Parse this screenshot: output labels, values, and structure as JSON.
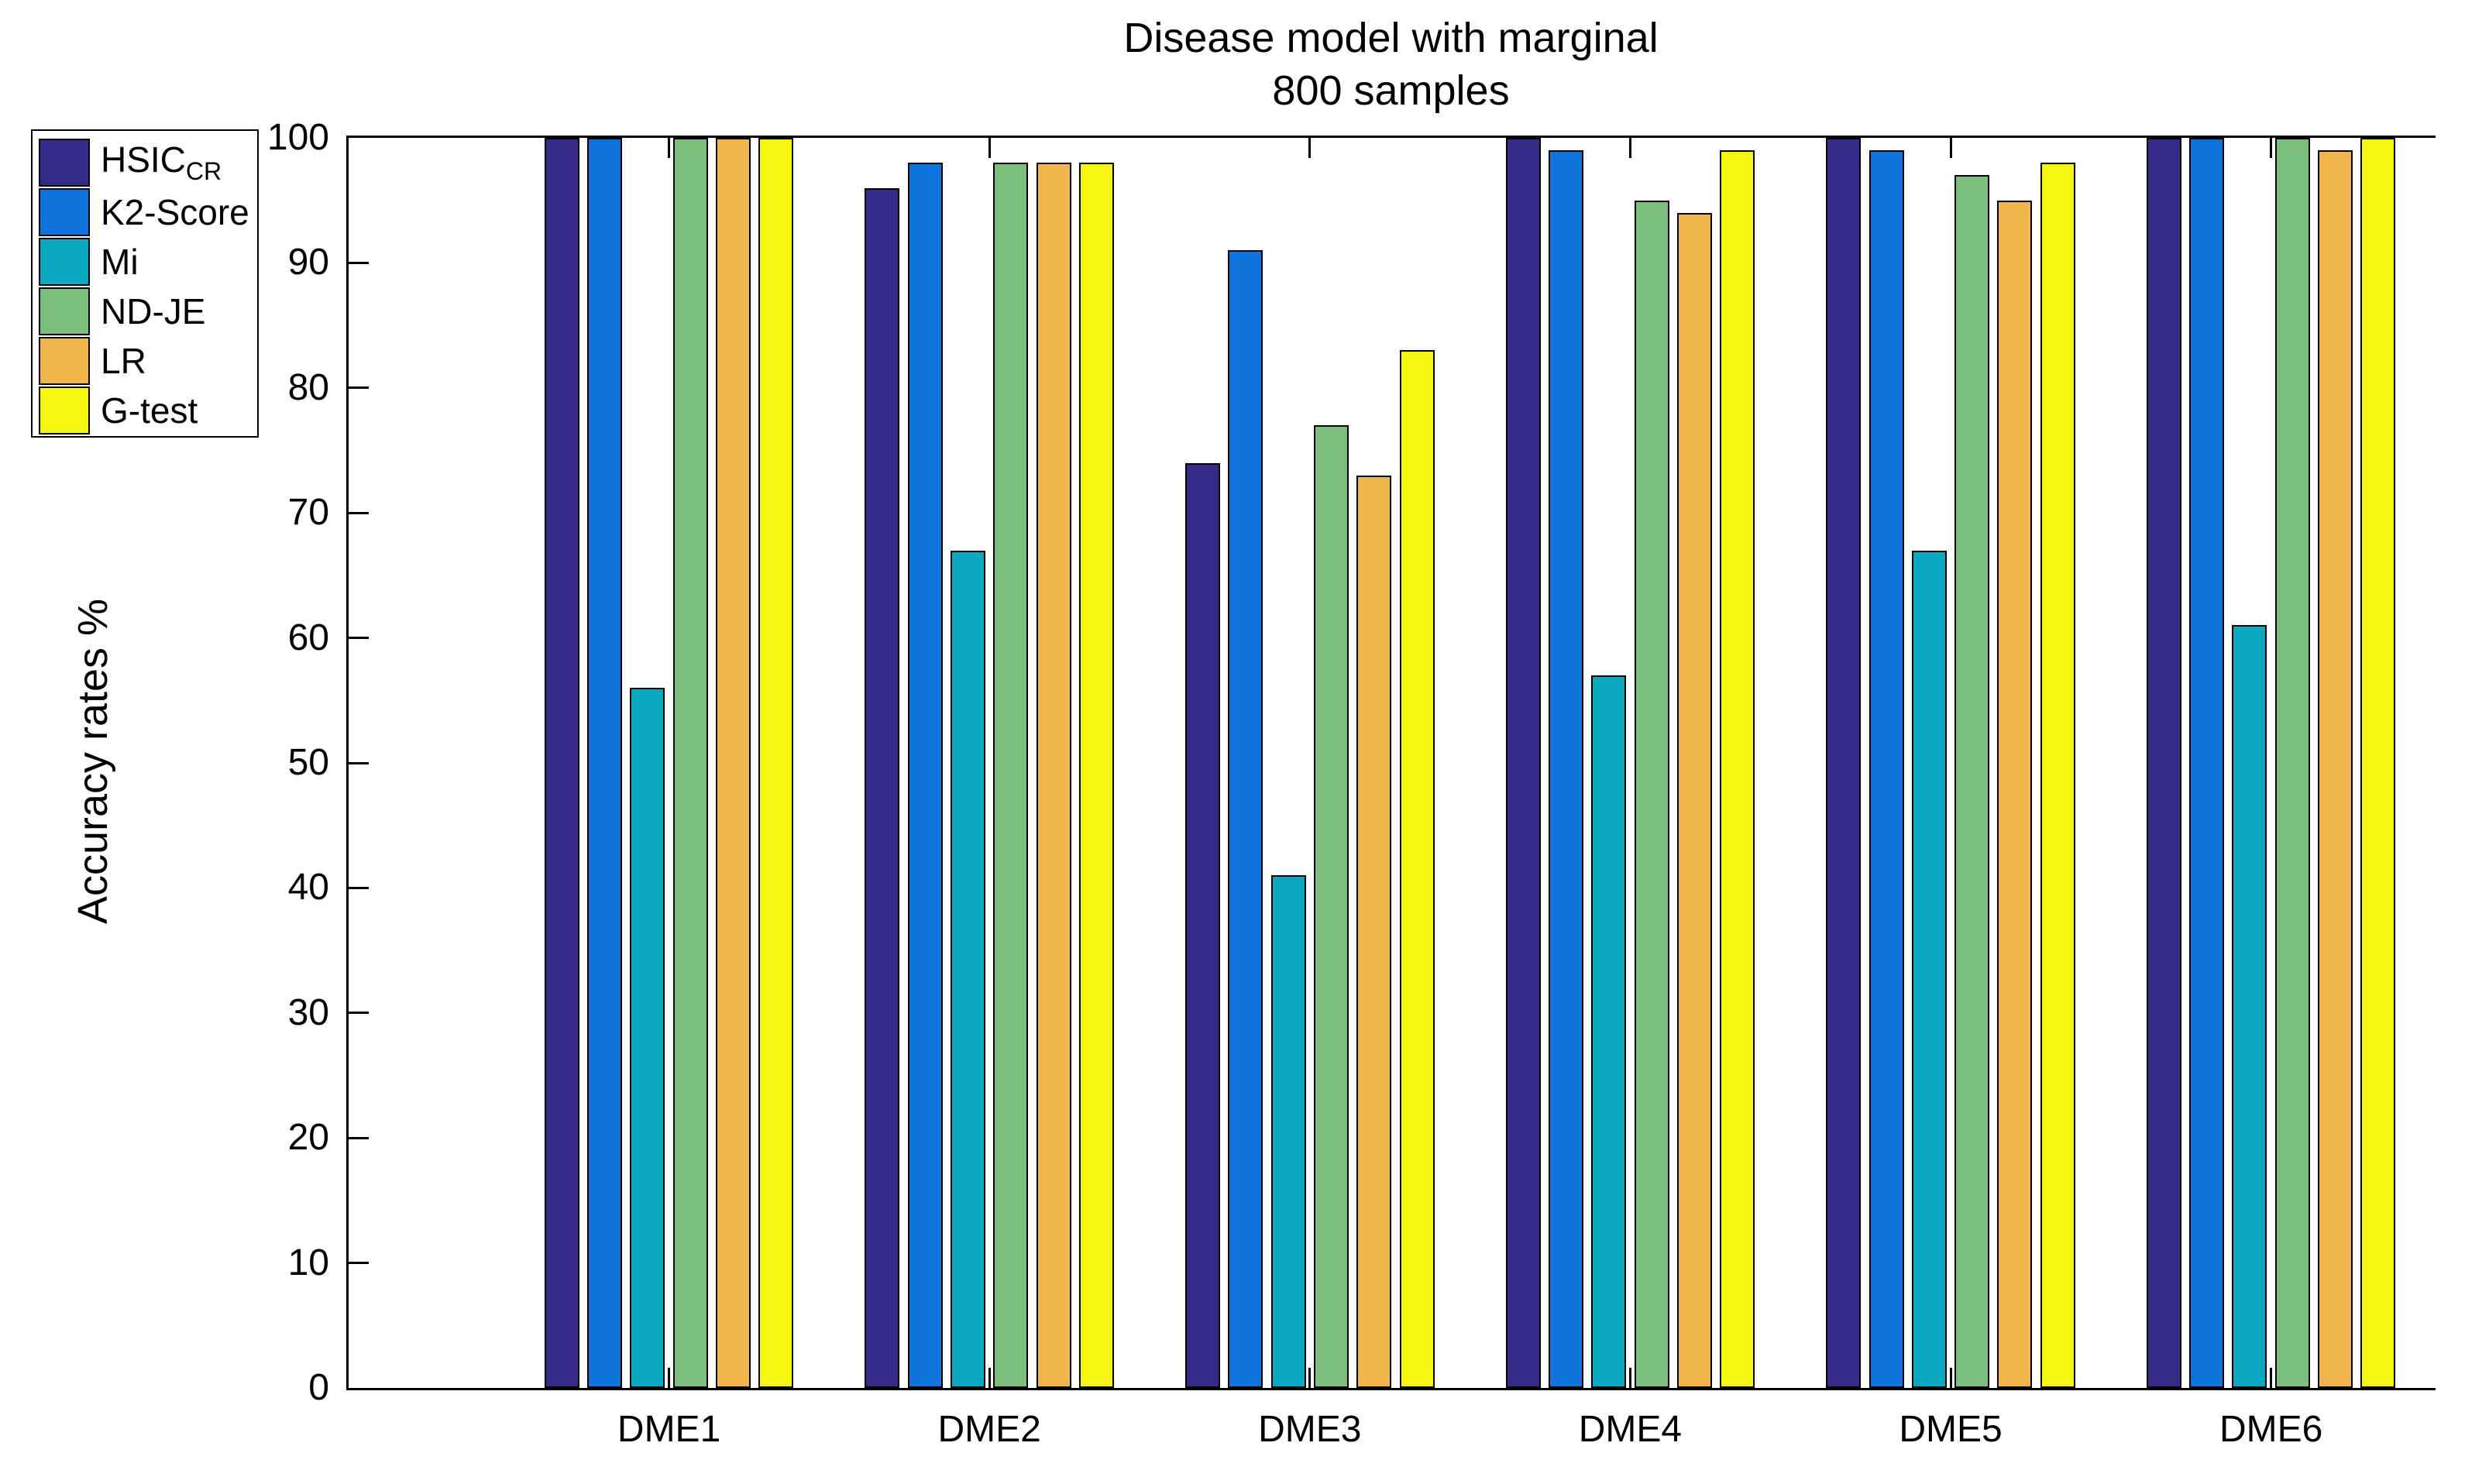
{
  "title": {
    "line1": "Disease model with marginal",
    "line2": "800 samples"
  },
  "axes": {
    "ylabel": "Accuracy rates %",
    "yticks": [
      0,
      10,
      20,
      30,
      40,
      50,
      60,
      70,
      80,
      90,
      100
    ]
  },
  "legend": {
    "entries": [
      "HSIC_CR",
      "K2-Score",
      "Mi",
      "ND-JE",
      "LR",
      "G-test"
    ]
  },
  "chart_data": {
    "type": "bar",
    "title": "Disease model with marginal",
    "subtitle": "800 samples",
    "xlabel": "",
    "ylabel": "Accuracy rates %",
    "ylim": [
      0,
      100
    ],
    "ytick_step": 10,
    "grid": false,
    "legend_position": "top-left-outside",
    "categories": [
      "DME1",
      "DME2",
      "DME3",
      "DME4",
      "DME5",
      "DME6"
    ],
    "series": [
      {
        "name": "HSIC",
        "subscript": "CR",
        "color": "#352A87",
        "values": [
          100,
          96,
          74,
          100,
          100,
          100
        ]
      },
      {
        "name": "K2-Score",
        "subscript": "",
        "color": "#0E73DA",
        "values": [
          100,
          98,
          91,
          99,
          99,
          100
        ]
      },
      {
        "name": "Mi",
        "subscript": "",
        "color": "#0AA9C2",
        "values": [
          56,
          67,
          41,
          57,
          67,
          61
        ]
      },
      {
        "name": "ND-JE",
        "subscript": "",
        "color": "#7CBE7C",
        "values": [
          100,
          98,
          77,
          95,
          97,
          100
        ]
      },
      {
        "name": "LR",
        "subscript": "",
        "color": "#F0B54B",
        "values": [
          100,
          98,
          73,
          94,
          95,
          99
        ]
      },
      {
        "name": "G-test",
        "subscript": "",
        "color": "#F6F711",
        "values": [
          100,
          98,
          83,
          99,
          98,
          100
        ]
      }
    ]
  }
}
